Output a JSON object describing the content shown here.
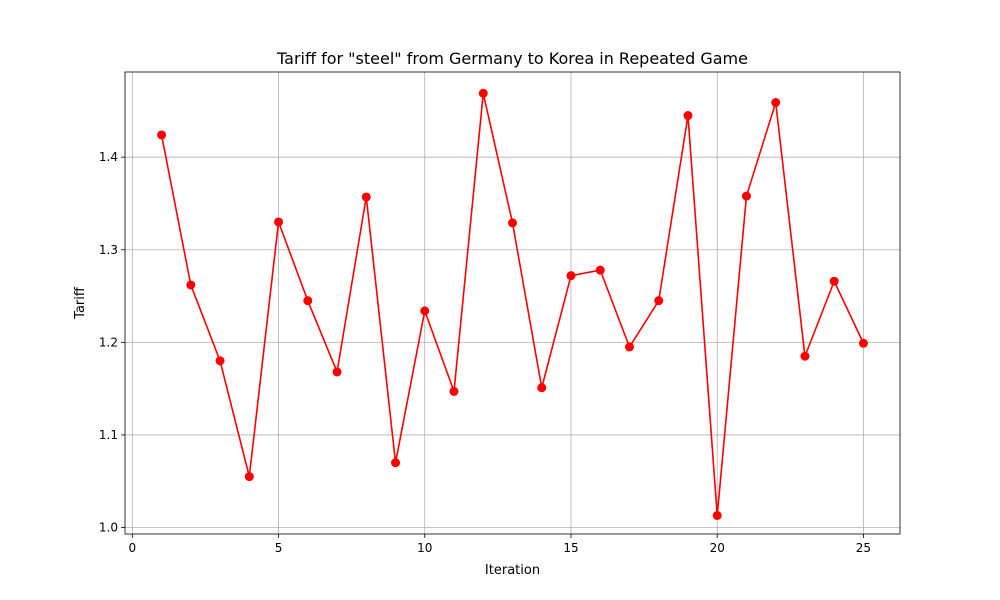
{
  "chart_data": {
    "type": "line",
    "title": "Tariff for \"steel\" from Germany to Korea in Repeated Game",
    "xlabel": "Iteration",
    "ylabel": "Tariff",
    "xlim": [
      -0.25,
      26.25
    ],
    "ylim": [
      0.993,
      1.492
    ],
    "grid": true,
    "x_ticks": [
      0,
      5,
      10,
      15,
      20,
      25
    ],
    "y_ticks": [
      1.0,
      1.1,
      1.2,
      1.3,
      1.4
    ],
    "series": [
      {
        "color": "#ff0000",
        "marker": "circle",
        "x": [
          1,
          2,
          3,
          4,
          5,
          6,
          7,
          8,
          9,
          10,
          11,
          12,
          13,
          14,
          15,
          16,
          17,
          18,
          19,
          20,
          21,
          22,
          23,
          24,
          25
        ],
        "values": [
          1.424,
          1.262,
          1.18,
          1.055,
          1.33,
          1.245,
          1.168,
          1.357,
          1.07,
          1.234,
          1.147,
          1.469,
          1.329,
          1.151,
          1.272,
          1.278,
          1.195,
          1.245,
          1.445,
          1.013,
          1.358,
          1.459,
          1.185,
          1.266,
          1.199
        ]
      }
    ]
  }
}
